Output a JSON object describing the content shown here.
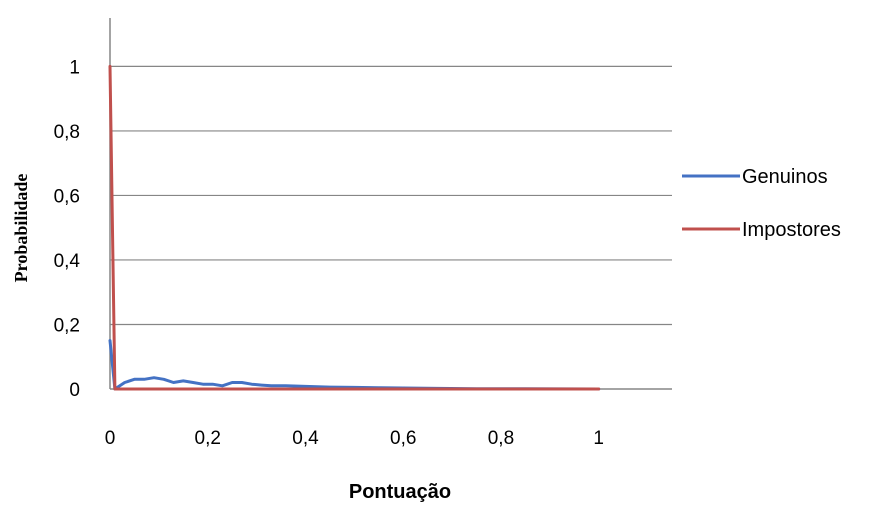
{
  "chart_data": {
    "type": "line",
    "title": "",
    "xlabel": "Pontuação",
    "ylabel": "Probabilidade",
    "xlim": [
      0,
      1.15
    ],
    "ylim": [
      0,
      1.15
    ],
    "x_ticks": [
      0,
      0.2,
      0.4,
      0.6,
      0.8,
      1
    ],
    "x_tick_labels": [
      "0",
      "0,2",
      "0,4",
      "0,6",
      "0,8",
      "1"
    ],
    "y_ticks": [
      0,
      0.2,
      0.4,
      0.6,
      0.8,
      1
    ],
    "y_tick_labels": [
      "0",
      "0,2",
      "0,4",
      "0,6",
      "0,8",
      "1"
    ],
    "grid": "horizontal",
    "legend_position": "right",
    "series": [
      {
        "name": "Genuinos",
        "color": "#4472C4",
        "points": [
          [
            0,
            0.15
          ],
          [
            0.01,
            0
          ],
          [
            0.03,
            0.02
          ],
          [
            0.05,
            0.03
          ],
          [
            0.07,
            0.03
          ],
          [
            0.09,
            0.035
          ],
          [
            0.11,
            0.03
          ],
          [
            0.13,
            0.02
          ],
          [
            0.15,
            0.025
          ],
          [
            0.17,
            0.02
          ],
          [
            0.19,
            0.015
          ],
          [
            0.21,
            0.015
          ],
          [
            0.23,
            0.01
          ],
          [
            0.25,
            0.02
          ],
          [
            0.27,
            0.02
          ],
          [
            0.29,
            0.015
          ],
          [
            0.31,
            0.012
          ],
          [
            0.33,
            0.01
          ],
          [
            0.36,
            0.01
          ],
          [
            0.4,
            0.008
          ],
          [
            0.45,
            0.006
          ],
          [
            0.5,
            0.005
          ],
          [
            0.55,
            0.004
          ],
          [
            0.6,
            0.003
          ],
          [
            0.67,
            0.002
          ],
          [
            0.75,
            0.001
          ],
          [
            0.85,
            0.001
          ],
          [
            1,
            0
          ]
        ]
      },
      {
        "name": "Impostores",
        "color": "#C0504D",
        "points": [
          [
            0,
            1
          ],
          [
            0.01,
            0
          ],
          [
            0.2,
            0
          ],
          [
            0.4,
            0
          ],
          [
            0.6,
            0
          ],
          [
            0.8,
            0
          ],
          [
            1,
            0
          ]
        ]
      }
    ]
  }
}
